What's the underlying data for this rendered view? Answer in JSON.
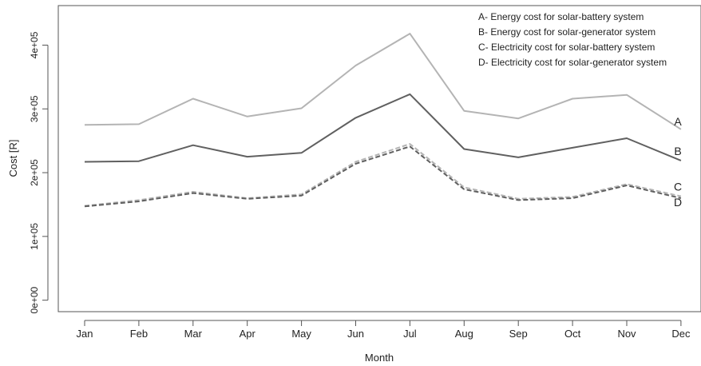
{
  "chart_data": {
    "type": "line",
    "xlabel": "Month",
    "ylabel": "Cost [R]",
    "categories": [
      "Jan",
      "Feb",
      "Mar",
      "Apr",
      "May",
      "Jun",
      "Jul",
      "Aug",
      "Sep",
      "Oct",
      "Nov",
      "Dec"
    ],
    "yticks": [
      "0e+00",
      "1e+05",
      "2e+05",
      "3e+05",
      "4e+05"
    ],
    "ylim": [
      -18000,
      462000
    ],
    "grid": false,
    "legend_position": "top-right",
    "legend": [
      "A- Energy cost for solar-battery system",
      "B- Energy cost for solar-generator system",
      "C- Electricity cost for solar-battery system",
      "D- Electricity cost for solar-generator system"
    ],
    "series": [
      {
        "name": "A",
        "color": "#b4b4b4",
        "dash": "solid",
        "values": [
          275000,
          276000,
          316000,
          288000,
          301000,
          368000,
          418000,
          297000,
          285000,
          316000,
          322000,
          268000
        ]
      },
      {
        "name": "B",
        "color": "#606060",
        "dash": "solid",
        "values": [
          217000,
          218000,
          243000,
          225000,
          231000,
          286000,
          323000,
          237000,
          224000,
          239000,
          254000,
          219000
        ]
      },
      {
        "name": "C",
        "color": "#b4b4b4",
        "dash": "dashed",
        "values": [
          148000,
          157000,
          170000,
          160000,
          166000,
          217000,
          245000,
          177000,
          159000,
          162000,
          182000,
          163000
        ]
      },
      {
        "name": "D",
        "color": "#606060",
        "dash": "dashed",
        "values": [
          147000,
          155000,
          168000,
          159000,
          164000,
          214000,
          241000,
          174000,
          157000,
          160000,
          180000,
          160000
        ]
      }
    ]
  }
}
